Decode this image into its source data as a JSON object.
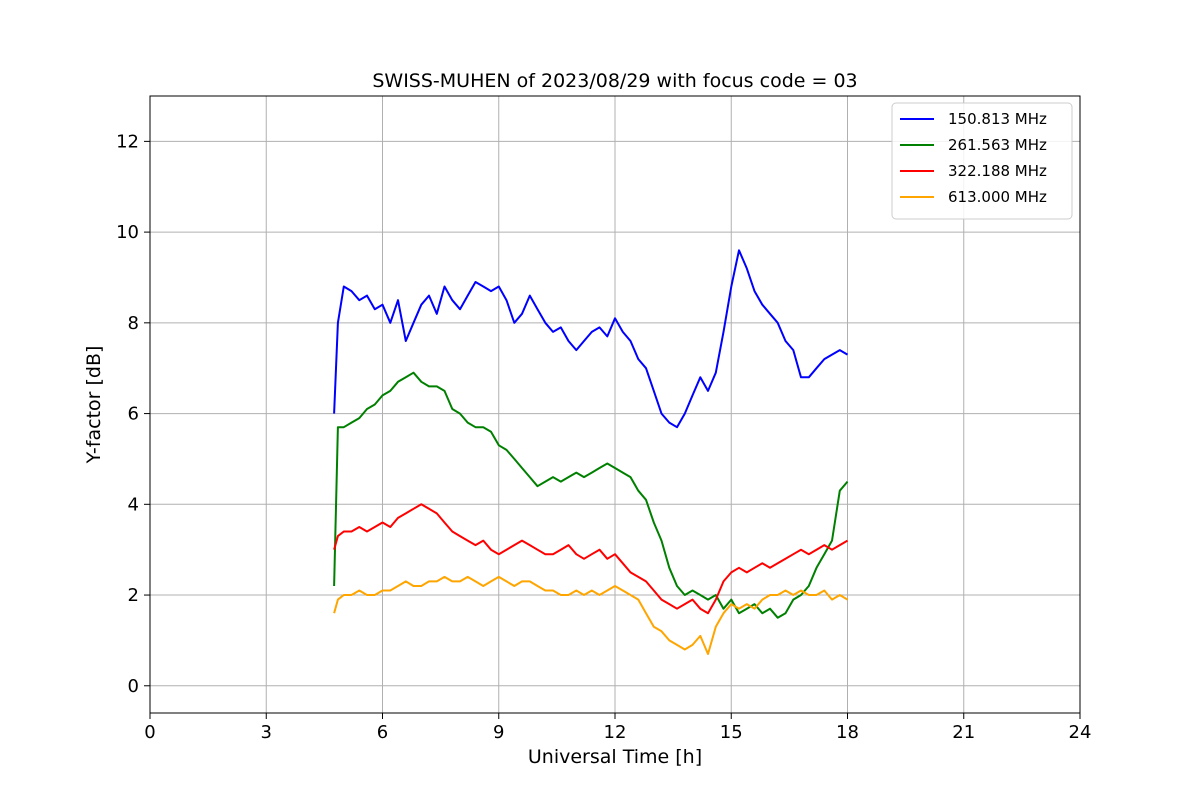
{
  "chart_data": {
    "type": "line",
    "title": "SWISS-MUHEN of 2023/08/29 with focus code = 03",
    "xlabel": "Universal Time [h]",
    "ylabel": "Y-factor [dB]",
    "xlim": [
      0,
      24
    ],
    "ylim": [
      -0.6,
      13.0
    ],
    "xticks": [
      0,
      3,
      6,
      9,
      12,
      15,
      18,
      21,
      24
    ],
    "yticks": [
      0,
      2,
      4,
      6,
      8,
      10,
      12
    ],
    "grid": true,
    "legend_position": "top-right",
    "series": [
      {
        "name": "150.813 MHz",
        "color": "#0000ff",
        "x": [
          4.75,
          4.85,
          5.0,
          5.2,
          5.4,
          5.6,
          5.8,
          6.0,
          6.2,
          6.4,
          6.6,
          6.8,
          7.0,
          7.2,
          7.4,
          7.6,
          7.8,
          8.0,
          8.2,
          8.4,
          8.6,
          8.8,
          9.0,
          9.2,
          9.4,
          9.6,
          9.8,
          10.0,
          10.2,
          10.4,
          10.6,
          10.8,
          11.0,
          11.2,
          11.4,
          11.6,
          11.8,
          12.0,
          12.2,
          12.4,
          12.6,
          12.8,
          13.0,
          13.2,
          13.4,
          13.6,
          13.8,
          14.0,
          14.2,
          14.4,
          14.6,
          14.8,
          15.0,
          15.2,
          15.4,
          15.6,
          15.8,
          16.0,
          16.2,
          16.4,
          16.6,
          16.8,
          17.0,
          17.2,
          17.4,
          17.6,
          17.8,
          18.0
        ],
        "y": [
          6.0,
          8.0,
          8.8,
          8.7,
          8.5,
          8.6,
          8.3,
          8.4,
          8.0,
          8.5,
          7.6,
          8.0,
          8.4,
          8.6,
          8.2,
          8.8,
          8.5,
          8.3,
          8.6,
          8.9,
          8.8,
          8.7,
          8.8,
          8.5,
          8.0,
          8.2,
          8.6,
          8.3,
          8.0,
          7.8,
          7.9,
          7.6,
          7.4,
          7.6,
          7.8,
          7.9,
          7.7,
          8.1,
          7.8,
          7.6,
          7.2,
          7.0,
          6.5,
          6.0,
          5.8,
          5.7,
          6.0,
          6.4,
          6.8,
          6.5,
          6.9,
          7.8,
          8.8,
          9.6,
          9.2,
          8.7,
          8.4,
          8.2,
          8.0,
          7.6,
          7.4,
          6.8,
          6.8,
          7.0,
          7.2,
          7.3,
          7.4,
          7.3
        ]
      },
      {
        "name": "261.563 MHz",
        "color": "#008000",
        "x": [
          4.75,
          4.85,
          5.0,
          5.2,
          5.4,
          5.6,
          5.8,
          6.0,
          6.2,
          6.4,
          6.6,
          6.8,
          7.0,
          7.2,
          7.4,
          7.6,
          7.8,
          8.0,
          8.2,
          8.4,
          8.6,
          8.8,
          9.0,
          9.2,
          9.4,
          9.6,
          9.8,
          10.0,
          10.2,
          10.4,
          10.6,
          10.8,
          11.0,
          11.2,
          11.4,
          11.6,
          11.8,
          12.0,
          12.2,
          12.4,
          12.6,
          12.8,
          13.0,
          13.2,
          13.4,
          13.6,
          13.8,
          14.0,
          14.2,
          14.4,
          14.6,
          14.8,
          15.0,
          15.2,
          15.4,
          15.6,
          15.8,
          16.0,
          16.2,
          16.4,
          16.6,
          16.8,
          17.0,
          17.2,
          17.4,
          17.6,
          17.8,
          18.0
        ],
        "y": [
          2.2,
          5.7,
          5.7,
          5.8,
          5.9,
          6.1,
          6.2,
          6.4,
          6.5,
          6.7,
          6.8,
          6.9,
          6.7,
          6.6,
          6.6,
          6.5,
          6.1,
          6.0,
          5.8,
          5.7,
          5.7,
          5.6,
          5.3,
          5.2,
          5.0,
          4.8,
          4.6,
          4.4,
          4.5,
          4.6,
          4.5,
          4.6,
          4.7,
          4.6,
          4.7,
          4.8,
          4.9,
          4.8,
          4.7,
          4.6,
          4.3,
          4.1,
          3.6,
          3.2,
          2.6,
          2.2,
          2.0,
          2.1,
          2.0,
          1.9,
          2.0,
          1.7,
          1.9,
          1.6,
          1.7,
          1.8,
          1.6,
          1.7,
          1.5,
          1.6,
          1.9,
          2.0,
          2.2,
          2.6,
          2.9,
          3.2,
          4.3,
          4.5
        ]
      },
      {
        "name": "322.188 MHz",
        "color": "#ff0000",
        "x": [
          4.75,
          4.85,
          5.0,
          5.2,
          5.4,
          5.6,
          5.8,
          6.0,
          6.2,
          6.4,
          6.6,
          6.8,
          7.0,
          7.2,
          7.4,
          7.6,
          7.8,
          8.0,
          8.2,
          8.4,
          8.6,
          8.8,
          9.0,
          9.2,
          9.4,
          9.6,
          9.8,
          10.0,
          10.2,
          10.4,
          10.6,
          10.8,
          11.0,
          11.2,
          11.4,
          11.6,
          11.8,
          12.0,
          12.2,
          12.4,
          12.6,
          12.8,
          13.0,
          13.2,
          13.4,
          13.6,
          13.8,
          14.0,
          14.2,
          14.4,
          14.6,
          14.8,
          15.0,
          15.2,
          15.4,
          15.6,
          15.8,
          16.0,
          16.2,
          16.4,
          16.6,
          16.8,
          17.0,
          17.2,
          17.4,
          17.6,
          17.8,
          18.0
        ],
        "y": [
          3.0,
          3.3,
          3.4,
          3.4,
          3.5,
          3.4,
          3.5,
          3.6,
          3.5,
          3.7,
          3.8,
          3.9,
          4.0,
          3.9,
          3.8,
          3.6,
          3.4,
          3.3,
          3.2,
          3.1,
          3.2,
          3.0,
          2.9,
          3.0,
          3.1,
          3.2,
          3.1,
          3.0,
          2.9,
          2.9,
          3.0,
          3.1,
          2.9,
          2.8,
          2.9,
          3.0,
          2.8,
          2.9,
          2.7,
          2.5,
          2.4,
          2.3,
          2.1,
          1.9,
          1.8,
          1.7,
          1.8,
          1.9,
          1.7,
          1.6,
          1.9,
          2.3,
          2.5,
          2.6,
          2.5,
          2.6,
          2.7,
          2.6,
          2.7,
          2.8,
          2.9,
          3.0,
          2.9,
          3.0,
          3.1,
          3.0,
          3.1,
          3.2
        ]
      },
      {
        "name": "613.000 MHz",
        "color": "#ffa500",
        "x": [
          4.75,
          4.85,
          5.0,
          5.2,
          5.4,
          5.6,
          5.8,
          6.0,
          6.2,
          6.4,
          6.6,
          6.8,
          7.0,
          7.2,
          7.4,
          7.6,
          7.8,
          8.0,
          8.2,
          8.4,
          8.6,
          8.8,
          9.0,
          9.2,
          9.4,
          9.6,
          9.8,
          10.0,
          10.2,
          10.4,
          10.6,
          10.8,
          11.0,
          11.2,
          11.4,
          11.6,
          11.8,
          12.0,
          12.2,
          12.4,
          12.6,
          12.8,
          13.0,
          13.2,
          13.4,
          13.6,
          13.8,
          14.0,
          14.2,
          14.4,
          14.6,
          14.8,
          15.0,
          15.2,
          15.4,
          15.6,
          15.8,
          16.0,
          16.2,
          16.4,
          16.6,
          16.8,
          17.0,
          17.2,
          17.4,
          17.6,
          17.8,
          18.0
        ],
        "y": [
          1.6,
          1.9,
          2.0,
          2.0,
          2.1,
          2.0,
          2.0,
          2.1,
          2.1,
          2.2,
          2.3,
          2.2,
          2.2,
          2.3,
          2.3,
          2.4,
          2.3,
          2.3,
          2.4,
          2.3,
          2.2,
          2.3,
          2.4,
          2.3,
          2.2,
          2.3,
          2.3,
          2.2,
          2.1,
          2.1,
          2.0,
          2.0,
          2.1,
          2.0,
          2.1,
          2.0,
          2.1,
          2.2,
          2.1,
          2.0,
          1.9,
          1.6,
          1.3,
          1.2,
          1.0,
          0.9,
          0.8,
          0.9,
          1.1,
          0.7,
          1.3,
          1.6,
          1.8,
          1.7,
          1.8,
          1.7,
          1.9,
          2.0,
          2.0,
          2.1,
          2.0,
          2.1,
          2.0,
          2.0,
          2.1,
          1.9,
          2.0,
          1.9
        ]
      }
    ]
  }
}
